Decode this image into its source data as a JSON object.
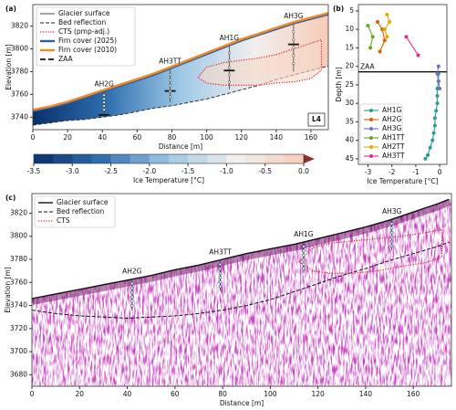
{
  "chart_data": [
    {
      "type": "contour",
      "panel_label": "(a)",
      "xlabel": "Distance [m]",
      "ylabel": "Elevation [m]",
      "xlim": [
        0,
        170
      ],
      "ylim": [
        3729,
        3839
      ],
      "xticks": [
        0,
        20,
        40,
        60,
        80,
        100,
        120,
        140,
        160
      ],
      "yticks": [
        3740,
        3760,
        3780,
        3800,
        3820
      ],
      "legend": "upper left",
      "box_label": "L4",
      "series": [
        {
          "name": "Glacier surface",
          "color": "#666666",
          "style": "solid",
          "width": 1.2,
          "x": [
            0,
            10,
            20,
            30,
            40,
            50,
            60,
            70,
            80,
            90,
            100,
            110,
            120,
            130,
            140,
            150,
            160,
            170
          ],
          "values": [
            3745,
            3748,
            3752,
            3757,
            3762,
            3767,
            3772,
            3777,
            3783,
            3789,
            3795,
            3801,
            3807,
            3812,
            3817,
            3822,
            3826,
            3830
          ]
        },
        {
          "name": "Bed reflection",
          "color": "#222222",
          "style": "dashed",
          "width": 0.9,
          "x": [
            0,
            10,
            20,
            30,
            40,
            50,
            60,
            70,
            80,
            90,
            100,
            110,
            120,
            130,
            140,
            150,
            160,
            170
          ],
          "values": [
            3733,
            3735,
            3737,
            3738,
            3740,
            3742,
            3745,
            3748,
            3750,
            3753,
            3756,
            3760,
            3764,
            3768,
            3773,
            3777,
            3781,
            3785
          ]
        },
        {
          "name": "CTS (pmp-adj.)",
          "color": "#e0202a",
          "style": "dotted",
          "width": 1.2,
          "x": [
            95,
            100,
            110,
            120,
            130,
            140,
            150,
            160,
            166,
            166,
            160,
            150,
            140,
            130,
            120,
            110,
            100,
            95
          ],
          "values": [
            3775,
            3784,
            3788,
            3790,
            3792,
            3795,
            3800,
            3805,
            3808,
            3781,
            3774,
            3771,
            3770,
            3768,
            3768,
            3768,
            3770,
            3775
          ]
        },
        {
          "name": "Firn cover (2025)",
          "color": "#2b5fa8",
          "style": "solid",
          "width": 2.4,
          "x": [
            0,
            10,
            20,
            30,
            40,
            50,
            60,
            70,
            80,
            90,
            100,
            110,
            120,
            130,
            140,
            150,
            160,
            170
          ],
          "values": [
            3745.5,
            3748.5,
            3752.5,
            3757.5,
            3762.5,
            3767.5,
            3772.5,
            3777.5,
            3783.5,
            3789.5,
            3795.5,
            3801.5,
            3807.5,
            3812.5,
            3817.5,
            3822.5,
            3826.5,
            3830.5
          ]
        },
        {
          "name": "Firn cover (2010)",
          "color": "#f08a24",
          "style": "solid",
          "width": 2.4,
          "x": [
            0,
            10,
            20,
            30,
            40,
            50,
            60,
            70,
            80,
            90,
            100,
            110,
            120,
            130,
            140,
            150,
            160,
            170
          ],
          "values": [
            3746.5,
            3749.5,
            3753.5,
            3758.5,
            3763.5,
            3768.5,
            3773.5,
            3778.5,
            3784.5,
            3790.5,
            3796.5,
            3802.5,
            3808.5,
            3813.5,
            3818.5,
            3823.5,
            3827.5,
            3831.5
          ]
        },
        {
          "name": "ZAA",
          "color": "#111111",
          "style": "segments",
          "width": 1.8,
          "x": [
            41,
            79,
            113,
            150
          ],
          "values": [
            3742,
            3763,
            3781,
            3804
          ]
        }
      ],
      "boreholes": [
        {
          "name": "AH2G",
          "x": 41,
          "color": "#e07b39"
        },
        {
          "name": "AH3TT",
          "x": 79,
          "color": "#c2185b"
        },
        {
          "name": "AH1G",
          "x": 113,
          "color": "#1a9e77"
        },
        {
          "name": "AH3G",
          "x": 150,
          "color": "#6a5acd"
        }
      ],
      "colorbar": {
        "label": "Ice Temperature [°C]",
        "lim": [
          -3.5,
          0
        ],
        "ticks": [
          -3.5,
          {
            "value": -3,
            "label": "-3.0"
          },
          -2.5,
          {
            "value": -2,
            "label": "-2.0"
          },
          -1.5,
          {
            "value": -1,
            "label": "-1.0"
          },
          -0.5,
          {
            "value": 0,
            "label": "0.0"
          }
        ],
        "levels": 14,
        "colors": [
          "#08306b",
          "#2f6fae",
          "#9ec8e6",
          "#f2efef",
          "#f7cbb8"
        ],
        "extend_color": "#8b2e2e"
      }
    },
    {
      "type": "line",
      "panel_label": "(b)",
      "xlabel": "Ice Temperature [°C]",
      "ylabel": "Depth [m]",
      "xlim": [
        -3.4,
        0.3
      ],
      "ylim": [
        46.5,
        3.3
      ],
      "xticks": [
        -3,
        -2,
        -1,
        0
      ],
      "yticks": [
        5,
        10,
        15,
        20,
        25,
        30,
        35,
        40,
        45
      ],
      "legend": "lower left",
      "hline": {
        "value": 21.5,
        "label": "ZAA"
      },
      "series": [
        {
          "name": "AH1G",
          "color": "#2a9d8f",
          "x": [
            -0.05,
            -0.05,
            -0.1,
            -0.1,
            -0.1,
            -0.15,
            -0.2,
            -0.2,
            -0.25,
            -0.3,
            -0.4,
            -0.5,
            -0.6
          ],
          "values": [
            22,
            24,
            26,
            28,
            30,
            32,
            34,
            36,
            38,
            40,
            42,
            44,
            45
          ]
        },
        {
          "name": "AH2G",
          "color": "#d95f02",
          "x": [
            -2.6,
            -2.4,
            -2.3,
            -2.5
          ],
          "values": [
            8,
            10,
            13,
            16
          ]
        },
        {
          "name": "AH3G",
          "color": "#7570b3",
          "x": [
            -0.05,
            -0.1,
            -0.05,
            0
          ],
          "values": [
            20,
            22,
            24,
            26
          ]
        },
        {
          "name": "AH1TT",
          "color": "#66a61e",
          "x": [
            -3,
            -2.8,
            -2.9
          ],
          "values": [
            9,
            12,
            15
          ]
        },
        {
          "name": "AH2TT",
          "color": "#e6ab02",
          "x": [
            -2.2,
            -2.1,
            -2.3,
            -2.2
          ],
          "values": [
            6,
            8,
            10,
            12
          ]
        },
        {
          "name": "AH3TT",
          "color": "#e7298a",
          "x": [
            -1.4,
            -0.9
          ],
          "values": [
            12,
            17
          ]
        }
      ]
    },
    {
      "type": "radargram",
      "panel_label": "(c)",
      "xlabel": "Distance [m]",
      "ylabel": "Elevation [m]",
      "xlim": [
        0,
        176
      ],
      "ylim": [
        3670,
        3837
      ],
      "xticks": [
        0,
        20,
        40,
        60,
        80,
        100,
        120,
        140,
        160
      ],
      "yticks": [
        3680,
        3700,
        3720,
        3740,
        3760,
        3780,
        3800,
        3820
      ],
      "legend": "upper left",
      "series": [
        {
          "name": "Glacier surface",
          "color": "#111111",
          "style": "solid",
          "width": 1.4,
          "x": [
            0,
            10,
            20,
            30,
            40,
            50,
            60,
            70,
            80,
            90,
            100,
            110,
            120,
            130,
            140,
            150,
            160,
            170,
            175
          ],
          "values": [
            3746,
            3750,
            3754,
            3758,
            3762,
            3766,
            3771,
            3775,
            3780,
            3785,
            3789,
            3793,
            3798,
            3803,
            3808,
            3814,
            3821,
            3828,
            3832
          ]
        },
        {
          "name": "Bed reflection",
          "color": "#111111",
          "style": "dashed",
          "width": 1,
          "x": [
            0,
            10,
            20,
            30,
            40,
            50,
            60,
            70,
            80,
            90,
            100,
            110,
            120,
            130,
            140,
            150,
            160,
            170,
            175
          ],
          "values": [
            3736,
            3733,
            3731,
            3730,
            3729,
            3730,
            3731,
            3733,
            3736,
            3740,
            3745,
            3752,
            3759,
            3766,
            3772,
            3779,
            3785,
            3791,
            3795
          ]
        },
        {
          "name": "CTS",
          "color": "#e0202a",
          "style": "dotted",
          "width": 1.2,
          "x": [
            112,
            118,
            125,
            135,
            145,
            155,
            165,
            172,
            172,
            165,
            155,
            145,
            135,
            125,
            118,
            112
          ],
          "values": [
            3778,
            3790,
            3794,
            3796,
            3798,
            3800,
            3803,
            3806,
            3782,
            3777,
            3774,
            3770,
            3768,
            3768,
            3770,
            3778
          ]
        }
      ],
      "boreholes": [
        {
          "name": "AH2G",
          "x": 42,
          "color": "#e07b39"
        },
        {
          "name": "AH3TT",
          "x": 79,
          "color": "#c2185b"
        },
        {
          "name": "AH1G",
          "x": 114,
          "color": "#1a9e77"
        },
        {
          "name": "AH3G",
          "x": 151,
          "color": "#6a5acd"
        }
      ]
    }
  ]
}
